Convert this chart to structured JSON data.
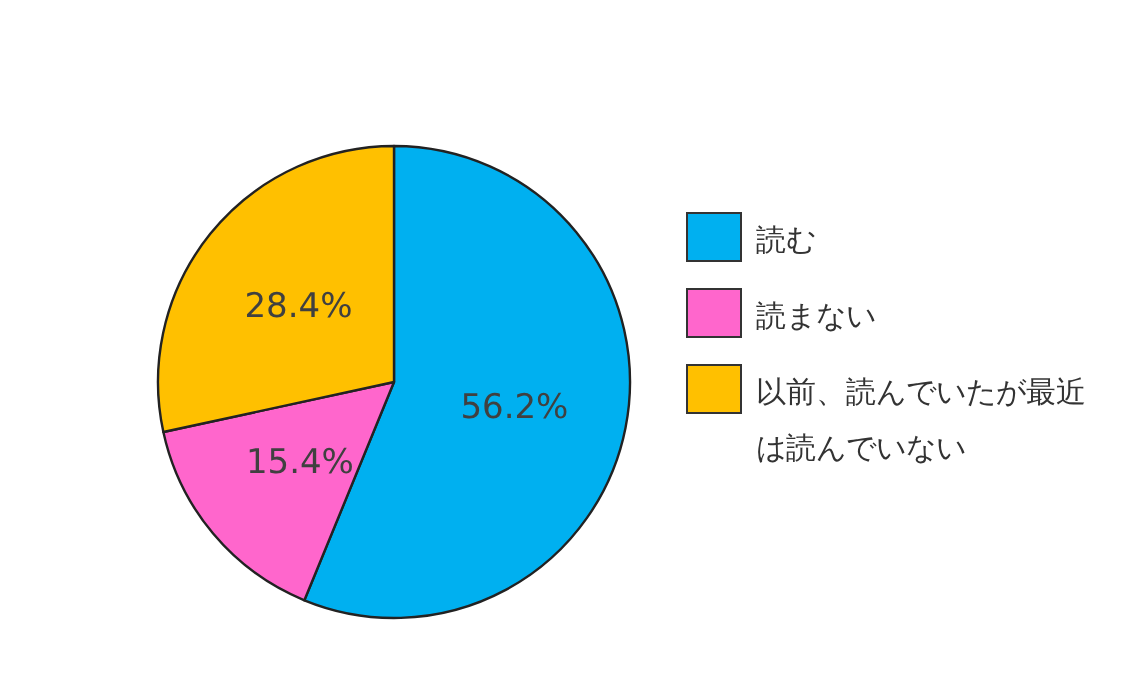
{
  "chart_data": {
    "type": "pie",
    "categories": [
      "読む",
      "読まない",
      "以前、読んでいたが最近は読んでいない"
    ],
    "values": [
      56.2,
      15.4,
      28.4
    ],
    "colors": [
      "#00b0f0",
      "#ff66cc",
      "#ffc000"
    ],
    "value_labels": [
      "56.2%",
      "15.4%",
      "28.4%"
    ],
    "legend": "right"
  }
}
